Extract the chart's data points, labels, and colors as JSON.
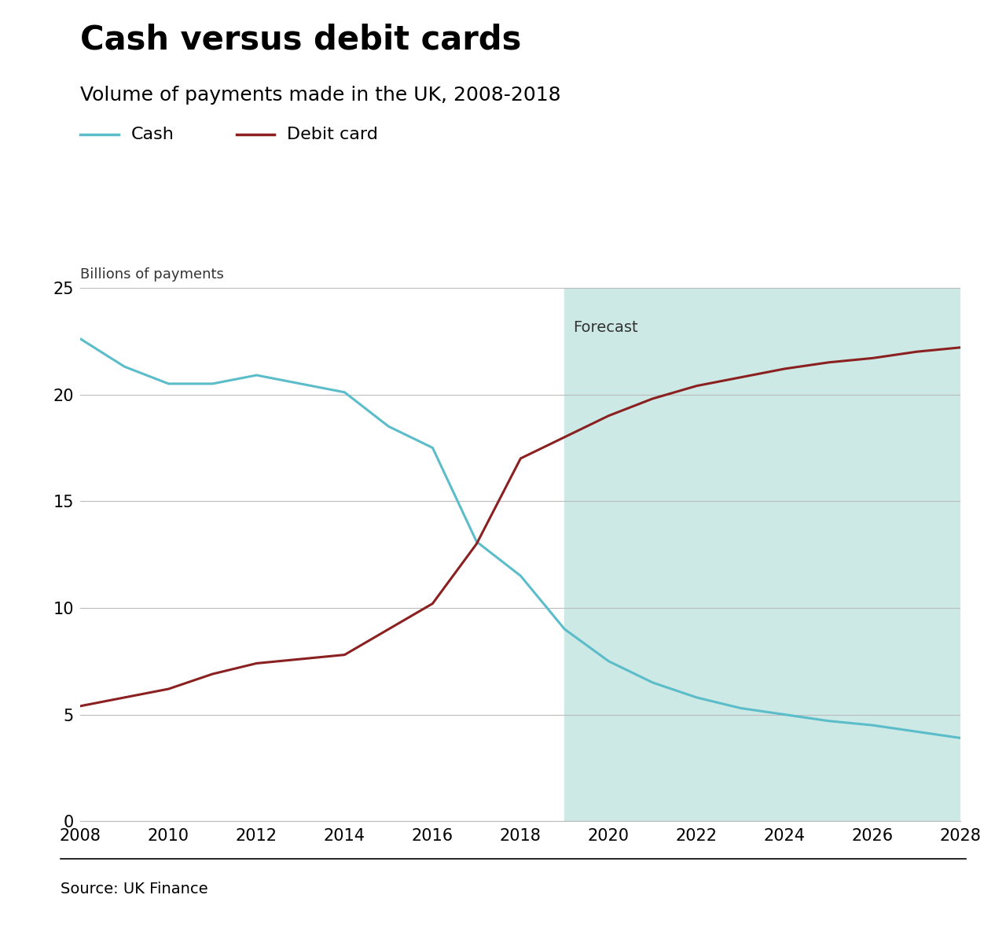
{
  "title": "Cash versus debit cards",
  "subtitle": "Volume of payments made in the UK, 2008-2018",
  "ylabel": "Billions of payments",
  "source": "Source: UK Finance",
  "cash_years": [
    2008,
    2009,
    2010,
    2011,
    2012,
    2013,
    2014,
    2015,
    2016,
    2017,
    2018,
    2019,
    2020,
    2021,
    2022,
    2023,
    2024,
    2025,
    2026,
    2027,
    2028
  ],
  "cash_values": [
    22.6,
    21.3,
    20.5,
    20.5,
    20.9,
    20.5,
    20.1,
    18.5,
    17.5,
    13.1,
    11.5,
    9.0,
    7.5,
    6.5,
    5.8,
    5.3,
    5.0,
    4.7,
    4.5,
    4.2,
    3.9
  ],
  "debit_years": [
    2008,
    2009,
    2010,
    2011,
    2012,
    2013,
    2014,
    2015,
    2016,
    2017,
    2018,
    2019,
    2020,
    2021,
    2022,
    2023,
    2024,
    2025,
    2026,
    2027,
    2028
  ],
  "debit_values": [
    5.4,
    5.8,
    6.2,
    6.9,
    7.4,
    7.6,
    7.8,
    9.0,
    10.2,
    13.0,
    17.0,
    18.0,
    19.0,
    19.8,
    20.4,
    20.8,
    21.2,
    21.5,
    21.7,
    22.0,
    22.2
  ],
  "forecast_start": 2019,
  "forecast_color": "#cce9e5",
  "cash_color": "#5bbcca",
  "debit_color": "#8b2020",
  "xlim": [
    2008,
    2028
  ],
  "ylim": [
    0,
    25
  ],
  "yticks": [
    0,
    5,
    10,
    15,
    20,
    25
  ],
  "xticks": [
    2008,
    2010,
    2012,
    2014,
    2016,
    2018,
    2020,
    2022,
    2024,
    2026,
    2028
  ],
  "legend_cash": "Cash",
  "legend_debit": "Debit card",
  "forecast_label": "Forecast",
  "title_fontsize": 30,
  "subtitle_fontsize": 18,
  "axis_fontsize": 13,
  "tick_fontsize": 15,
  "legend_fontsize": 16,
  "source_fontsize": 14,
  "background_color": "#ffffff",
  "grid_color": "#bbbbbb"
}
